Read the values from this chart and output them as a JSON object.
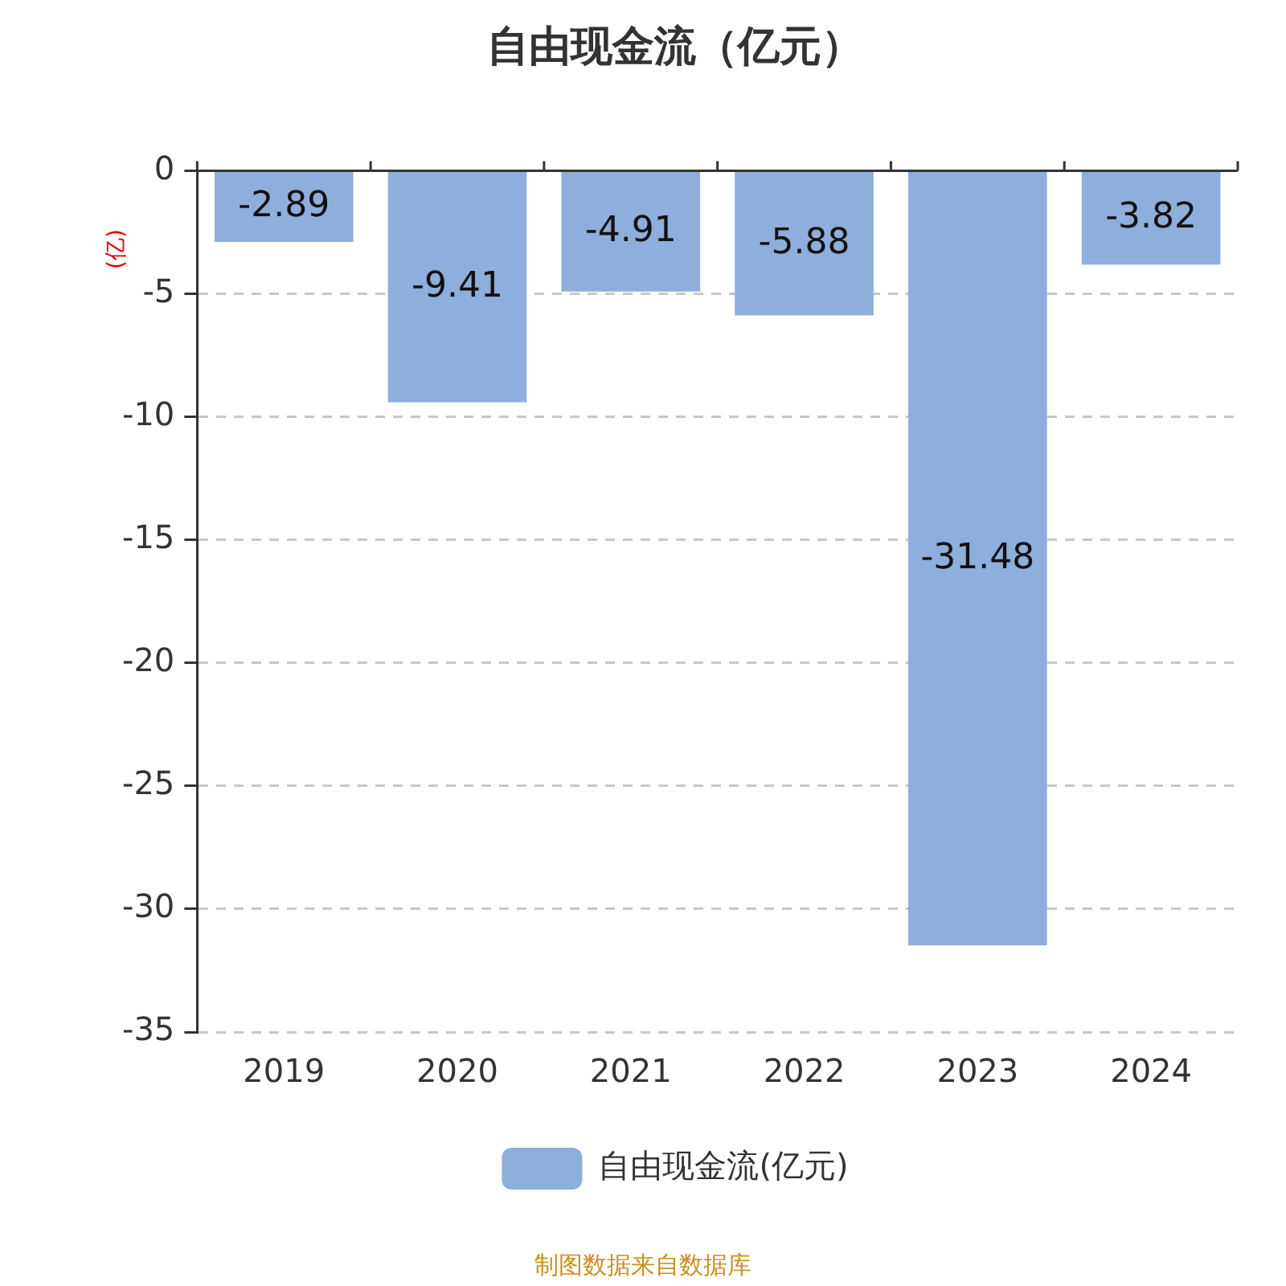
{
  "chart_data": {
    "type": "bar",
    "title": "自由现金流（亿元）",
    "ylabel": "(亿)",
    "categories": [
      "2019",
      "2020",
      "2021",
      "2022",
      "2023",
      "2024"
    ],
    "series": [
      {
        "name": "自由现金流(亿元)",
        "color": "#8eaedb",
        "values": [
          -2.89,
          -9.41,
          -4.91,
          -5.88,
          -31.48,
          -3.82
        ]
      }
    ],
    "ylim": [
      -35,
      0
    ],
    "yticks": [
      0,
      -5,
      -10,
      -15,
      -20,
      -25,
      -30,
      -35
    ],
    "grid": "y",
    "legend": "bottom",
    "data_labels": true,
    "annotations": [
      "制图数据来自数据库"
    ]
  }
}
